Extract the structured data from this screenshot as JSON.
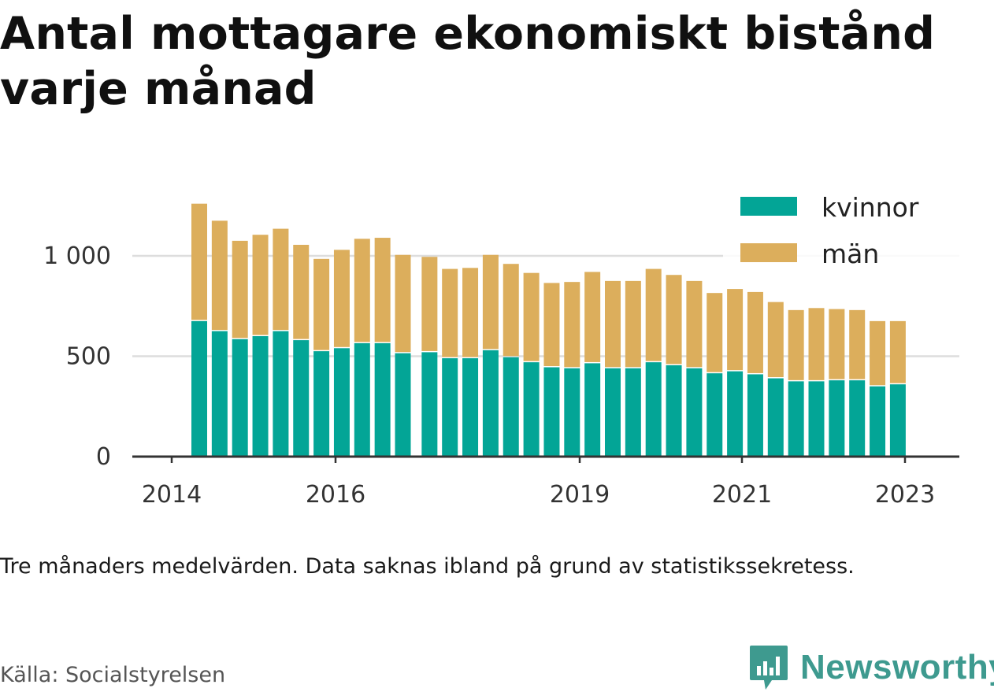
{
  "title": "Antal mottagare ekonomiskt bistånd varje månad",
  "note": "Tre månaders medelvärden. Data saknas ibland på grund av statistikssekretess.",
  "source": "Källa: Socialstyrelsen",
  "brand": "Newsworthy",
  "colors": {
    "kvinnor": "#03a596",
    "man": "#dcae5c",
    "brand": "#3e9a8f",
    "grid": "#dddddd",
    "axis": "#333333"
  },
  "chart_data": {
    "type": "bar",
    "stacked": true,
    "x_axis_ticks": [
      "2014",
      "2016",
      "2019",
      "2021",
      "2023"
    ],
    "y_axis_ticks": [
      "0",
      "500",
      "1 000"
    ],
    "ylim": [
      0,
      1300
    ],
    "grid": true,
    "legend_position": "top-right",
    "note": "Gap between the 11th and 12th bar (missing data).",
    "series": [
      {
        "name": "kvinnor",
        "values": [
          675,
          625,
          585,
          600,
          625,
          580,
          525,
          540,
          565,
          565,
          515,
          520,
          490,
          490,
          530,
          495,
          470,
          445,
          440,
          465,
          440,
          440,
          470,
          455,
          440,
          415,
          425,
          410,
          390,
          375,
          375,
          380,
          380,
          350,
          360
        ]
      },
      {
        "name": "män",
        "values": [
          585,
          550,
          490,
          505,
          510,
          475,
          460,
          490,
          520,
          525,
          490,
          475,
          445,
          450,
          475,
          465,
          445,
          420,
          430,
          455,
          435,
          435,
          465,
          450,
          435,
          400,
          410,
          410,
          380,
          355,
          365,
          355,
          350,
          325,
          315
        ]
      }
    ]
  }
}
